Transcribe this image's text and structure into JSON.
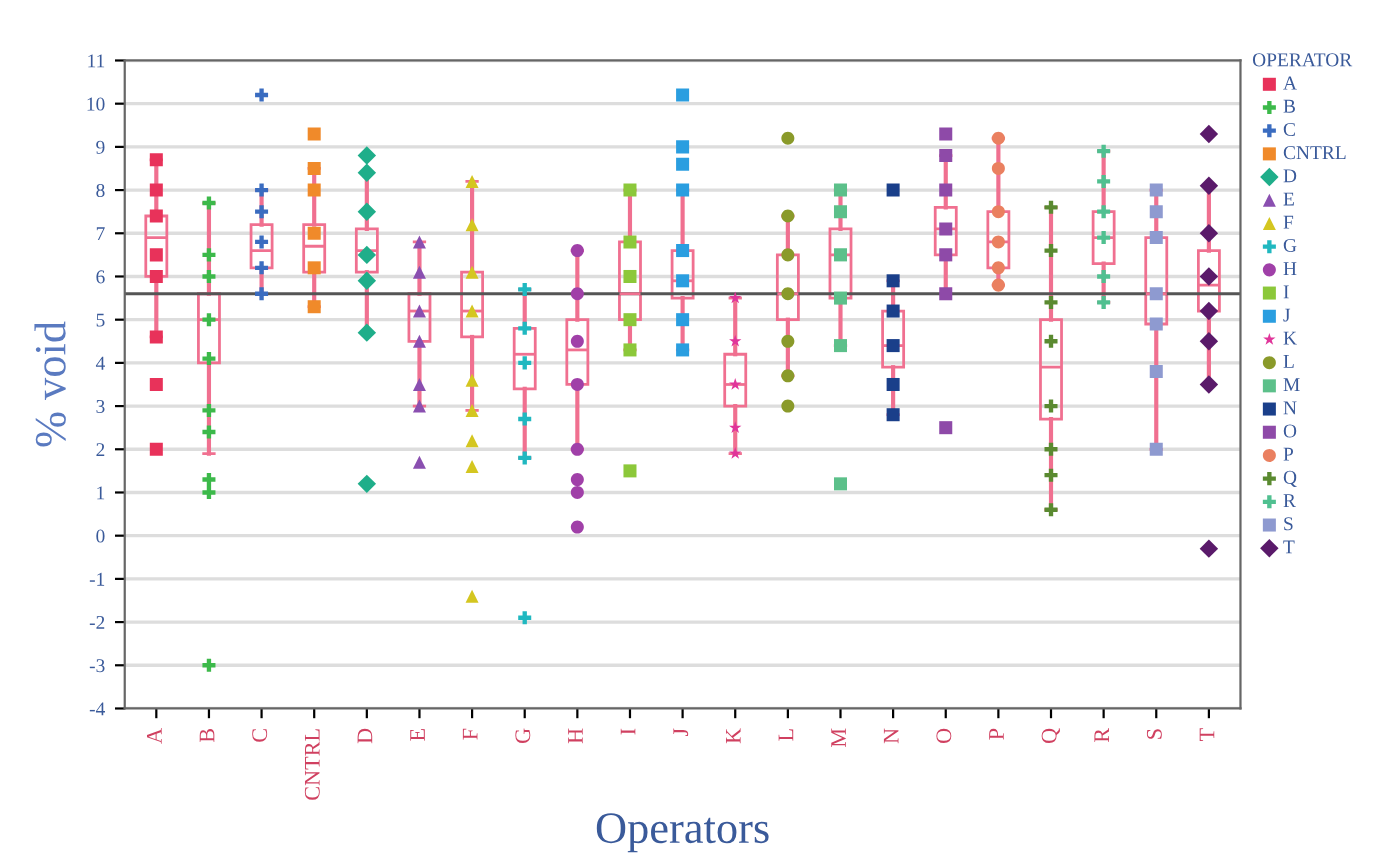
{
  "chart_data": {
    "type": "box",
    "xlabel": "Operators",
    "ylabel": "% void",
    "legend_title": "OPERATOR",
    "categories": [
      "A",
      "B",
      "C",
      "CNTRL",
      "D",
      "E",
      "F",
      "G",
      "H",
      "I",
      "J",
      "K",
      "L",
      "M",
      "N",
      "O",
      "P",
      "Q",
      "R",
      "S",
      "T"
    ],
    "ylim": [
      -4,
      11
    ],
    "yticks": [
      -4,
      -3,
      -2,
      -1,
      0,
      1,
      2,
      3,
      4,
      5,
      6,
      7,
      8,
      9,
      10,
      11
    ],
    "grid": "y",
    "legend": "right",
    "ref_lines": [
      {
        "axis": "y",
        "value": 5.6,
        "color": "#555555"
      }
    ],
    "series": [
      {
        "color": "#f07090",
        "boxes": [
          {
            "low": 4.6,
            "q1": 6.0,
            "median": 6.9,
            "q3": 7.4,
            "high": 8.7
          },
          {
            "low": 1.9,
            "q1": 4.0,
            "median": 5.0,
            "q3": 5.6,
            "high": 7.7
          },
          {
            "low": 5.6,
            "q1": 6.2,
            "median": 6.6,
            "q3": 7.2,
            "high": 8.0
          },
          {
            "low": 5.3,
            "q1": 6.1,
            "median": 6.7,
            "q3": 7.2,
            "high": 8.5
          },
          {
            "low": 4.7,
            "q1": 6.1,
            "median": 6.6,
            "q3": 7.1,
            "high": 8.4
          },
          {
            "low": 3.0,
            "q1": 4.5,
            "median": 5.2,
            "q3": 5.6,
            "high": 6.8
          },
          {
            "low": 2.9,
            "q1": 4.6,
            "median": 5.2,
            "q3": 6.1,
            "high": 8.2
          },
          {
            "low": 1.8,
            "q1": 3.4,
            "median": 4.2,
            "q3": 4.8,
            "high": 5.7
          },
          {
            "low": 2.0,
            "q1": 3.5,
            "median": 4.3,
            "q3": 5.0,
            "high": 6.6
          },
          {
            "low": 4.3,
            "q1": 5.0,
            "median": 5.6,
            "q3": 6.8,
            "high": 8.0
          },
          {
            "low": 4.3,
            "q1": 5.5,
            "median": 5.9,
            "q3": 6.6,
            "high": 8.0
          },
          {
            "low": 1.9,
            "q1": 3.0,
            "median": 3.5,
            "q3": 4.2,
            "high": 5.5
          },
          {
            "low": 3.7,
            "q1": 5.0,
            "median": 5.6,
            "q3": 6.5,
            "high": 7.4
          },
          {
            "low": 4.4,
            "q1": 5.5,
            "median": 6.5,
            "q3": 7.1,
            "high": 8.0
          },
          {
            "low": 2.8,
            "q1": 3.9,
            "median": 4.4,
            "q3": 5.2,
            "high": 5.9
          },
          {
            "low": 5.6,
            "q1": 6.5,
            "median": 7.1,
            "q3": 7.6,
            "high": 8.8
          },
          {
            "low": 5.8,
            "q1": 6.2,
            "median": 6.8,
            "q3": 7.5,
            "high": 9.2
          },
          {
            "low": 0.6,
            "q1": 2.7,
            "median": 3.9,
            "q3": 5.0,
            "high": 7.6
          },
          {
            "low": 5.4,
            "q1": 6.3,
            "median": 6.9,
            "q3": 7.5,
            "high": 8.9
          },
          {
            "low": 2.0,
            "q1": 4.9,
            "median": 5.6,
            "q3": 6.9,
            "high": 8.0
          },
          {
            "low": 3.5,
            "q1": 5.2,
            "median": 5.8,
            "q3": 6.6,
            "high": 8.1
          }
        ]
      },
      {
        "type": "scatter",
        "name": "A",
        "color": "#e8325a",
        "marker": "square",
        "x": [
          "A",
          "A",
          "A",
          "A",
          "A",
          "A",
          "A",
          "A"
        ],
        "values": [
          8.7,
          8.0,
          7.4,
          6.5,
          6.0,
          4.6,
          3.5,
          2.0
        ]
      },
      {
        "type": "scatter",
        "name": "B",
        "color": "#3cb94a",
        "marker": "cross",
        "x": [
          "B",
          "B",
          "B",
          "B",
          "B",
          "B",
          "B",
          "B",
          "B",
          "B"
        ],
        "values": [
          7.7,
          6.5,
          6.0,
          5.0,
          4.1,
          2.9,
          2.4,
          1.3,
          1.0,
          -3.0
        ]
      },
      {
        "type": "scatter",
        "name": "C",
        "color": "#3a6cc0",
        "marker": "cross",
        "x": [
          "C",
          "C",
          "C",
          "C",
          "C",
          "C"
        ],
        "values": [
          10.2,
          8.0,
          7.5,
          6.8,
          6.2,
          5.6
        ]
      },
      {
        "type": "scatter",
        "name": "CNTRL",
        "color": "#f08a2a",
        "marker": "square",
        "x": [
          "CNTRL",
          "CNTRL",
          "CNTRL",
          "CNTRL",
          "CNTRL",
          "CNTRL"
        ],
        "values": [
          9.3,
          8.5,
          8.0,
          7.0,
          6.2,
          5.3
        ]
      },
      {
        "type": "scatter",
        "name": "D",
        "color": "#1fae8a",
        "marker": "diamond",
        "x": [
          "D",
          "D",
          "D",
          "D",
          "D",
          "D",
          "D"
        ],
        "values": [
          8.8,
          8.4,
          7.5,
          6.5,
          5.9,
          4.7,
          1.2
        ]
      },
      {
        "type": "scatter",
        "name": "E",
        "color": "#8a4fb0",
        "marker": "triangle",
        "x": [
          "E",
          "E",
          "E",
          "E",
          "E",
          "E",
          "E"
        ],
        "values": [
          6.8,
          6.1,
          5.2,
          4.5,
          3.5,
          3.0,
          1.7
        ]
      },
      {
        "type": "scatter",
        "name": "F",
        "color": "#d4c620",
        "marker": "triangle",
        "x": [
          "F",
          "F",
          "F",
          "F",
          "F",
          "F",
          "F",
          "F",
          "F"
        ],
        "values": [
          8.2,
          7.2,
          6.1,
          5.2,
          3.6,
          2.9,
          2.2,
          1.6,
          -1.4
        ]
      },
      {
        "type": "scatter",
        "name": "G",
        "color": "#20b8c0",
        "marker": "cross",
        "x": [
          "G",
          "G",
          "G",
          "G",
          "G",
          "G"
        ],
        "values": [
          5.7,
          4.8,
          4.0,
          2.7,
          1.8,
          -1.9
        ]
      },
      {
        "type": "scatter",
        "name": "H",
        "color": "#a040a8",
        "marker": "circle",
        "x": [
          "H",
          "H",
          "H",
          "H",
          "H",
          "H",
          "H",
          "H"
        ],
        "values": [
          6.6,
          5.6,
          4.5,
          3.5,
          2.0,
          1.3,
          1.0,
          0.2
        ]
      },
      {
        "type": "scatter",
        "name": "I",
        "color": "#8cc83a",
        "marker": "square",
        "x": [
          "I",
          "I",
          "I",
          "I",
          "I",
          "I"
        ],
        "values": [
          8.0,
          6.8,
          6.0,
          5.0,
          4.3,
          1.5
        ]
      },
      {
        "type": "scatter",
        "name": "J",
        "color": "#2a9ee0",
        "marker": "square",
        "x": [
          "J",
          "J",
          "J",
          "J",
          "J",
          "J",
          "J",
          "J"
        ],
        "values": [
          10.2,
          9.0,
          8.6,
          8.0,
          6.6,
          5.9,
          5.0,
          4.3
        ]
      },
      {
        "type": "scatter",
        "name": "K",
        "color": "#e0359a",
        "marker": "star",
        "x": [
          "K",
          "K",
          "K",
          "K",
          "K"
        ],
        "values": [
          5.5,
          4.5,
          3.5,
          2.5,
          1.9
        ]
      },
      {
        "type": "scatter",
        "name": "L",
        "color": "#8a9a2a",
        "marker": "circle",
        "x": [
          "L",
          "L",
          "L",
          "L",
          "L",
          "L",
          "L"
        ],
        "values": [
          9.2,
          7.4,
          6.5,
          5.6,
          4.5,
          3.7,
          3.0
        ]
      },
      {
        "type": "scatter",
        "name": "M",
        "color": "#5cc08a",
        "marker": "square",
        "x": [
          "M",
          "M",
          "M",
          "M",
          "M",
          "M"
        ],
        "values": [
          8.0,
          7.5,
          6.5,
          5.5,
          4.4,
          1.2
        ]
      },
      {
        "type": "scatter",
        "name": "N",
        "color": "#1a3f8a",
        "marker": "square",
        "x": [
          "N",
          "N",
          "N",
          "N",
          "N",
          "N"
        ],
        "values": [
          8.0,
          5.9,
          5.2,
          4.4,
          3.5,
          2.8
        ]
      },
      {
        "type": "scatter",
        "name": "O",
        "color": "#8e4aa8",
        "marker": "square",
        "x": [
          "O",
          "O",
          "O",
          "O",
          "O",
          "O",
          "O"
        ],
        "values": [
          9.3,
          8.8,
          8.0,
          7.1,
          6.5,
          5.6,
          2.5
        ]
      },
      {
        "type": "scatter",
        "name": "P",
        "color": "#ea8060",
        "marker": "circle",
        "x": [
          "P",
          "P",
          "P",
          "P",
          "P",
          "P"
        ],
        "values": [
          9.2,
          8.5,
          7.5,
          6.8,
          6.2,
          5.8
        ]
      },
      {
        "type": "scatter",
        "name": "Q",
        "color": "#5a8a30",
        "marker": "cross",
        "x": [
          "Q",
          "Q",
          "Q",
          "Q",
          "Q",
          "Q",
          "Q",
          "Q"
        ],
        "values": [
          7.6,
          6.6,
          5.4,
          4.5,
          3.0,
          2.0,
          1.4,
          0.6
        ]
      },
      {
        "type": "scatter",
        "name": "R",
        "color": "#50c090",
        "marker": "cross",
        "x": [
          "R",
          "R",
          "R",
          "R",
          "R",
          "R"
        ],
        "values": [
          8.9,
          8.2,
          7.5,
          6.9,
          6.0,
          5.4
        ]
      },
      {
        "type": "scatter",
        "name": "S",
        "color": "#8e9ad0",
        "marker": "square",
        "x": [
          "S",
          "S",
          "S",
          "S",
          "S",
          "S",
          "S"
        ],
        "values": [
          8.0,
          7.5,
          6.9,
          5.6,
          4.9,
          3.8,
          2.0
        ]
      },
      {
        "type": "scatter",
        "name": "T",
        "color": "#5a1a6a",
        "marker": "diamond",
        "x": [
          "T",
          "T",
          "T",
          "T",
          "T",
          "T",
          "T",
          "T"
        ],
        "values": [
          9.3,
          8.1,
          7.0,
          6.0,
          5.2,
          4.5,
          3.5,
          -0.3
        ]
      }
    ]
  }
}
